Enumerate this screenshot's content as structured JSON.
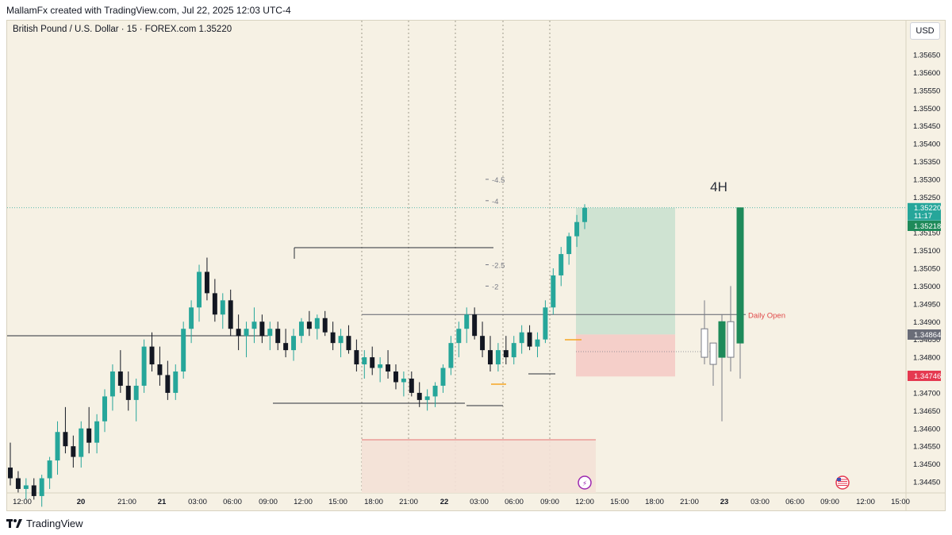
{
  "header": {
    "credit": "MallamFx created with TradingView.com, Jul 22, 2025 12:03 UTC-4"
  },
  "symbol": {
    "title": "British Pound / U.S. Dollar · 15 · FOREX.com  1.35220"
  },
  "currency": "USD",
  "footer": {
    "brand": "TradingView"
  },
  "colors": {
    "up": "#26a69a",
    "down": "#131722",
    "background": "#f6f1e4",
    "tp_zone": "#cfe3d2",
    "sl_zone": "#f5cfc9",
    "fvg_zone": "#f4e1d6"
  },
  "chart_data": {
    "type": "candlestick",
    "symbol": "GBPUSD",
    "interval": "15",
    "last_price": "1.35220",
    "ylim": [
      1.3442,
      1.3568
    ],
    "y_ticks": [
      "1.35650",
      "1.35600",
      "1.35550",
      "1.35500",
      "1.35450",
      "1.35400",
      "1.35350",
      "1.35300",
      "1.35250",
      "1.35200",
      "1.35150",
      "1.35100",
      "1.35050",
      "1.35000",
      "1.34950",
      "1.34900",
      "1.34850",
      "1.34800",
      "1.34750",
      "1.34700",
      "1.34650",
      "1.34600",
      "1.34550",
      "1.34500",
      "1.34450"
    ],
    "x_ticks": [
      "12:00",
      "20",
      "21:00",
      "21",
      "03:00",
      "06:00",
      "09:00",
      "12:00",
      "15:00",
      "18:00",
      "21:00",
      "22",
      "03:00",
      "06:00",
      "09:00",
      "12:00",
      "15:00",
      "18:00",
      "21:00",
      "23",
      "03:00",
      "06:00",
      "09:00",
      "12:00",
      "15:00"
    ],
    "price_labels": [
      {
        "value": "1.35220",
        "sub": "11:17",
        "kind": "last"
      },
      {
        "value": "1.35218",
        "kind": "bid"
      },
      {
        "value": "1.34864",
        "kind": "marker"
      },
      {
        "value": "1.34746",
        "kind": "stop"
      }
    ],
    "levels": [
      {
        "label": "Daily Open",
        "price": 1.3492
      }
    ],
    "fib_labels": [
      {
        "label": "-4.5",
        "price": 1.353
      },
      {
        "label": "-4",
        "price": 1.3524
      },
      {
        "label": "-2.5",
        "price": 1.3506
      },
      {
        "label": "-2",
        "price": 1.35
      }
    ],
    "position": {
      "entry": 1.34864,
      "take_profit": 1.3522,
      "stop_loss": 1.34746
    },
    "inset": {
      "label": "4H",
      "candles": [
        {
          "o": 1.3488,
          "h": 1.3496,
          "l": 1.3478,
          "c": 1.348
        },
        {
          "o": 1.3478,
          "h": 1.3484,
          "l": 1.3472,
          "c": 1.3484
        },
        {
          "o": 1.348,
          "h": 1.3492,
          "l": 1.3462,
          "c": 1.349
        },
        {
          "o": 1.348,
          "h": 1.35,
          "l": 1.3476,
          "c": 1.349
        },
        {
          "o": 1.3484,
          "h": 1.3522,
          "l": 1.3474,
          "c": 1.3522
        }
      ]
    },
    "series": [
      {
        "candles": [
          [
            1.3449,
            1.3456,
            1.3444,
            1.3446
          ],
          [
            1.3446,
            1.3448,
            1.3442,
            1.3443
          ],
          [
            1.3443,
            1.3446,
            1.344,
            1.3444
          ],
          [
            1.3444,
            1.3446,
            1.344,
            1.3441
          ],
          [
            1.3441,
            1.3447,
            1.3438,
            1.3446
          ],
          [
            1.3446,
            1.3452,
            1.3443,
            1.3451
          ],
          [
            1.3451,
            1.3462,
            1.3447,
            1.3459
          ],
          [
            1.3459,
            1.3466,
            1.3453,
            1.3455
          ],
          [
            1.3455,
            1.3458,
            1.3449,
            1.3452
          ],
          [
            1.3452,
            1.3462,
            1.3449,
            1.346
          ],
          [
            1.346,
            1.3466,
            1.3453,
            1.3456
          ],
          [
            1.3456,
            1.3464,
            1.3453,
            1.3462
          ],
          [
            1.3462,
            1.3471,
            1.3459,
            1.3469
          ],
          [
            1.3469,
            1.3478,
            1.3465,
            1.3476
          ],
          [
            1.3476,
            1.3482,
            1.347,
            1.3472
          ],
          [
            1.3472,
            1.3476,
            1.3465,
            1.3468
          ],
          [
            1.3468,
            1.3474,
            1.3462,
            1.3472
          ],
          [
            1.3472,
            1.3485,
            1.347,
            1.3483
          ],
          [
            1.3483,
            1.3487,
            1.3476,
            1.3478
          ],
          [
            1.3478,
            1.3483,
            1.3472,
            1.3475
          ],
          [
            1.3475,
            1.3479,
            1.3468,
            1.347
          ],
          [
            1.347,
            1.3478,
            1.3468,
            1.3476
          ],
          [
            1.3476,
            1.349,
            1.3474,
            1.3488
          ],
          [
            1.3488,
            1.3496,
            1.3484,
            1.3494
          ],
          [
            1.3494,
            1.3506,
            1.349,
            1.3504
          ],
          [
            1.3504,
            1.3508,
            1.3496,
            1.3498
          ],
          [
            1.3498,
            1.3502,
            1.349,
            1.3492
          ],
          [
            1.3492,
            1.3498,
            1.3488,
            1.3496
          ],
          [
            1.3496,
            1.3499,
            1.3486,
            1.3488
          ],
          [
            1.3488,
            1.3492,
            1.3482,
            1.3486
          ],
          [
            1.3486,
            1.349,
            1.348,
            1.3488
          ],
          [
            1.3488,
            1.3494,
            1.3484,
            1.349
          ],
          [
            1.349,
            1.3492,
            1.3484,
            1.3486
          ],
          [
            1.3486,
            1.349,
            1.3482,
            1.3488
          ],
          [
            1.3488,
            1.349,
            1.3482,
            1.3484
          ],
          [
            1.3484,
            1.3488,
            1.348,
            1.3482
          ],
          [
            1.3482,
            1.3488,
            1.3479,
            1.3486
          ],
          [
            1.3486,
            1.3491,
            1.3484,
            1.349
          ],
          [
            1.349,
            1.3493,
            1.3486,
            1.3488
          ],
          [
            1.3488,
            1.3492,
            1.3485,
            1.3491
          ],
          [
            1.3491,
            1.3493,
            1.3486,
            1.3487
          ],
          [
            1.3487,
            1.349,
            1.3482,
            1.3484
          ],
          [
            1.3484,
            1.3488,
            1.348,
            1.3486
          ],
          [
            1.3486,
            1.3489,
            1.3481,
            1.3482
          ],
          [
            1.3482,
            1.3485,
            1.3476,
            1.3478
          ],
          [
            1.3478,
            1.3482,
            1.3474,
            1.348
          ],
          [
            1.348,
            1.3483,
            1.3475,
            1.3477
          ],
          [
            1.3477,
            1.348,
            1.3473,
            1.3478
          ],
          [
            1.3478,
            1.3482,
            1.3474,
            1.3476
          ],
          [
            1.3476,
            1.3478,
            1.3471,
            1.3473
          ],
          [
            1.3473,
            1.3476,
            1.3469,
            1.3474
          ],
          [
            1.3474,
            1.3476,
            1.3469,
            1.347
          ],
          [
            1.347,
            1.3473,
            1.3466,
            1.3468
          ],
          [
            1.3468,
            1.3471,
            1.3465,
            1.3469
          ],
          [
            1.3469,
            1.3473,
            1.3466,
            1.3472
          ],
          [
            1.3472,
            1.3478,
            1.347,
            1.3477
          ],
          [
            1.3477,
            1.3486,
            1.3475,
            1.3484
          ],
          [
            1.3484,
            1.349,
            1.348,
            1.3488
          ],
          [
            1.3488,
            1.3494,
            1.3484,
            1.3492
          ],
          [
            1.3492,
            1.3494,
            1.3485,
            1.3486
          ],
          [
            1.3486,
            1.349,
            1.348,
            1.3482
          ],
          [
            1.3482,
            1.3486,
            1.3476,
            1.3478
          ],
          [
            1.3478,
            1.3484,
            1.3476,
            1.3482
          ],
          [
            1.3482,
            1.3486,
            1.3478,
            1.348
          ],
          [
            1.348,
            1.3486,
            1.3478,
            1.3484
          ],
          [
            1.3484,
            1.3489,
            1.3481,
            1.3487
          ],
          [
            1.3487,
            1.3489,
            1.3482,
            1.3483
          ],
          [
            1.3483,
            1.3487,
            1.348,
            1.3485
          ],
          [
            1.3485,
            1.3496,
            1.3484,
            1.3494
          ],
          [
            1.3494,
            1.3505,
            1.3492,
            1.3503
          ],
          [
            1.3503,
            1.3511,
            1.35,
            1.3509
          ],
          [
            1.3509,
            1.3515,
            1.3506,
            1.3514
          ],
          [
            1.3514,
            1.352,
            1.3511,
            1.3518
          ],
          [
            1.3518,
            1.3523,
            1.3516,
            1.3522
          ]
        ]
      }
    ]
  }
}
